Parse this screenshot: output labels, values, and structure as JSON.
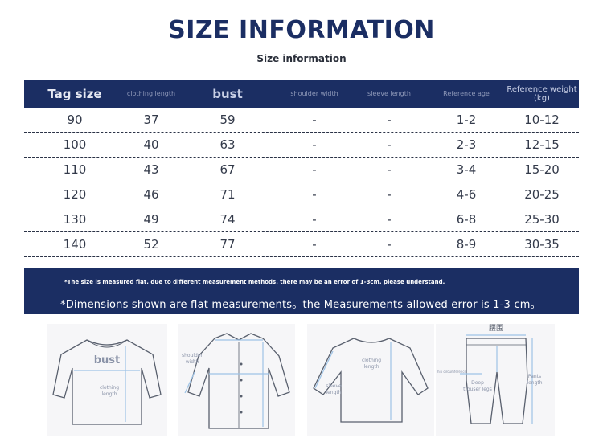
{
  "title": "SIZE INFORMATION",
  "subtitle": "Size information",
  "headers": {
    "tag_size": "Tag size",
    "clothing_length": "clothing length",
    "bust": "bust",
    "shoulder_width": "shoulder width",
    "sleeve_length": "sleeve length",
    "reference_age": "Reference age",
    "reference_weight": "Reference weight (kg)"
  },
  "rows": [
    {
      "tag": "90",
      "length": "37",
      "bust": "59",
      "shoulder": "-",
      "sleeve": "-",
      "age": "1-2",
      "weight": "10-12"
    },
    {
      "tag": "100",
      "length": "40",
      "bust": "63",
      "shoulder": "-",
      "sleeve": "-",
      "age": "2-3",
      "weight": "12-15"
    },
    {
      "tag": "110",
      "length": "43",
      "bust": "67",
      "shoulder": "-",
      "sleeve": "-",
      "age": "3-4",
      "weight": "15-20"
    },
    {
      "tag": "120",
      "length": "46",
      "bust": "71",
      "shoulder": "-",
      "sleeve": "-",
      "age": "4-6",
      "weight": "20-25"
    },
    {
      "tag": "130",
      "length": "49",
      "bust": "74",
      "shoulder": "-",
      "sleeve": "-",
      "age": "6-8",
      "weight": "25-30"
    },
    {
      "tag": "140",
      "length": "52",
      "bust": "77",
      "shoulder": "-",
      "sleeve": "-",
      "age": "8-9",
      "weight": "30-35"
    }
  ],
  "notes": {
    "small": "*The size is measured flat, due to different measurement methods, there may be an error of 1-3cm, please understand.",
    "large": "*Dimensions shown are flat measurements。the Measurements allowed error is 1-3 cm。"
  },
  "diagrams": {
    "tshirt": {
      "bust": "bust",
      "clothing_length": "clothing length"
    },
    "shirt": {
      "shoulder_width": "shoulder width"
    },
    "sweater": {
      "clothing_length": "clothing length",
      "sleeve_length": "sleeve length"
    },
    "pants": {
      "waist": "腰围",
      "hip_circumference": "hip circumference",
      "deep_trouser_legs": "Deep trouser legs",
      "pants_length": "Pants length"
    }
  },
  "colors": {
    "navy": "#1b2e63",
    "measure_line": "#9ec3e6"
  }
}
